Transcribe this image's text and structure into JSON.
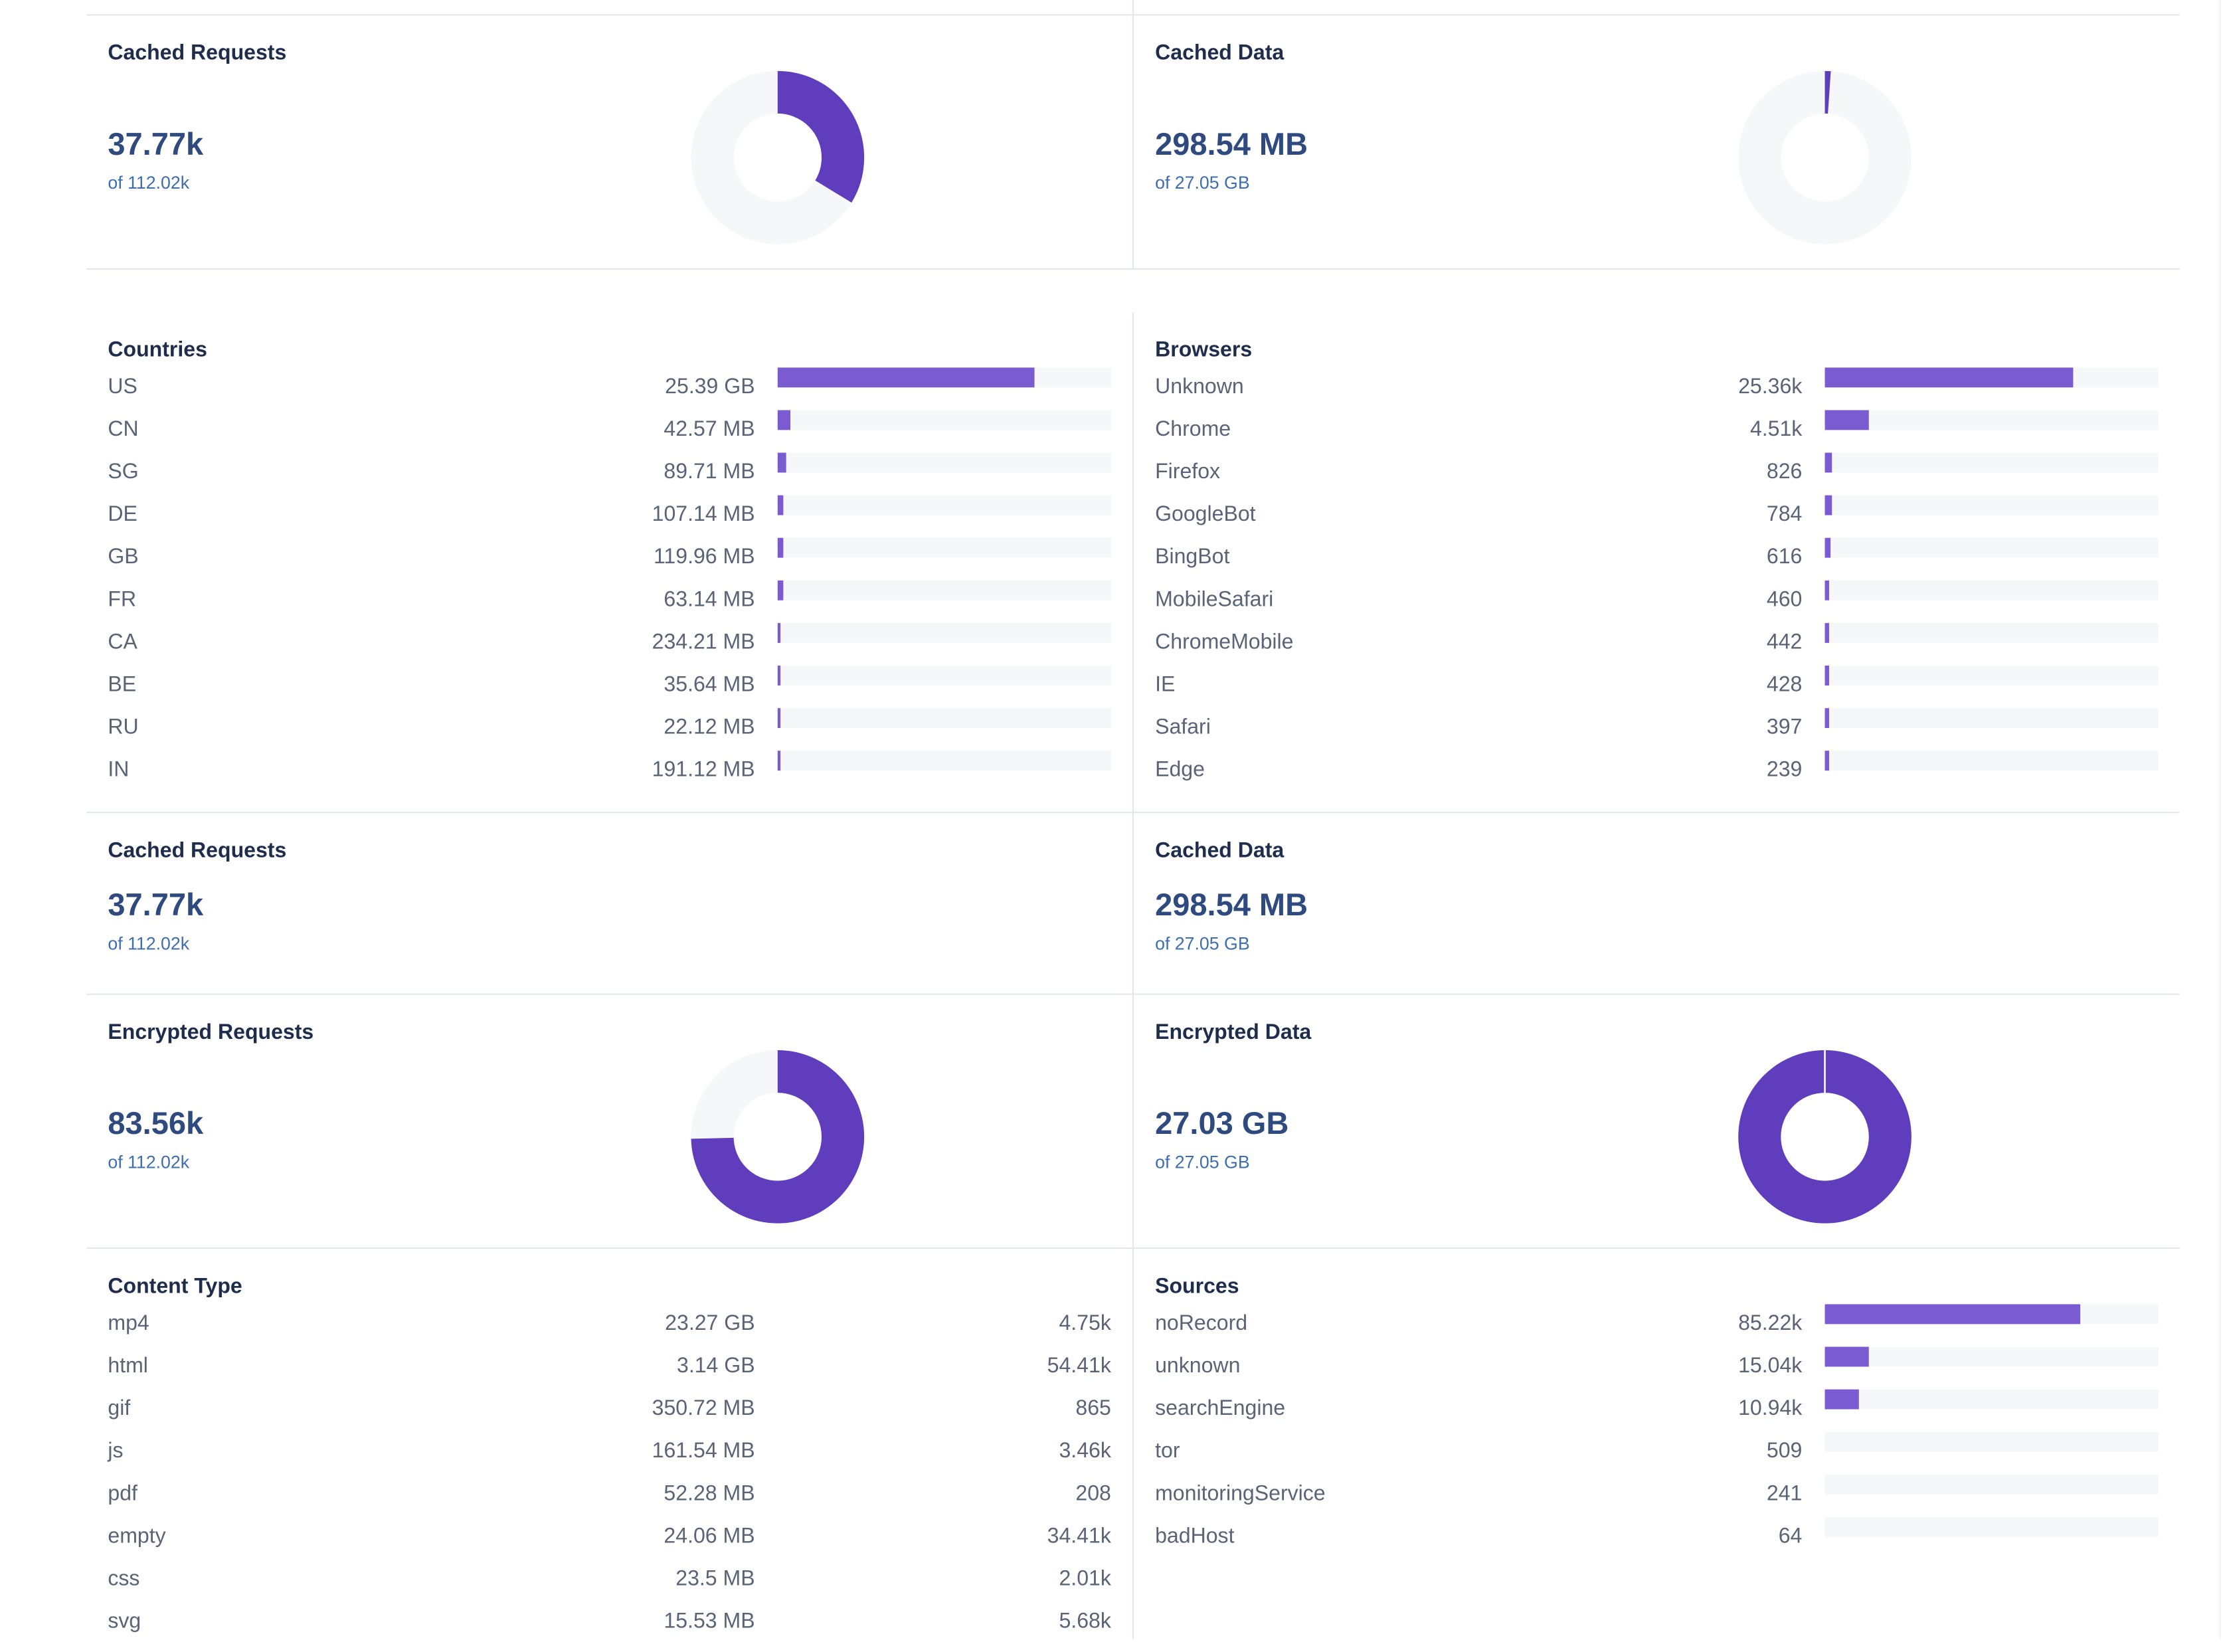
{
  "colors": {
    "accent": "#5f3dbc",
    "bar": "#7b5bd1",
    "track": "#f6f7f9",
    "divider": "#e3e6ec",
    "number": "#2e4a7e",
    "sub": "#3e6db0"
  },
  "cached_requests_top": {
    "title": "Cached Requests",
    "value": "37.77k",
    "sub": "of 112.02k",
    "fraction": 0.337
  },
  "cached_data_top": {
    "title": "Cached Data",
    "value": "298.54 MB",
    "sub": "of 27.05 GB",
    "fraction": 0.011
  },
  "countries": {
    "title": "Countries",
    "items": [
      {
        "label": "US",
        "value": "25.39 GB",
        "fraction": 0.77
      },
      {
        "label": "CN",
        "value": "42.57 MB",
        "fraction": 0.038
      },
      {
        "label": "SG",
        "value": "89.71 MB",
        "fraction": 0.026
      },
      {
        "label": "DE",
        "value": "107.14 MB",
        "fraction": 0.018
      },
      {
        "label": "GB",
        "value": "119.96 MB",
        "fraction": 0.018
      },
      {
        "label": "FR",
        "value": "63.14 MB",
        "fraction": 0.018
      },
      {
        "label": "CA",
        "value": "234.21 MB",
        "fraction": 0.009
      },
      {
        "label": "BE",
        "value": "35.64 MB",
        "fraction": 0.009
      },
      {
        "label": "RU",
        "value": "22.12 MB",
        "fraction": 0.009
      },
      {
        "label": "IN",
        "value": "191.12 MB",
        "fraction": 0.009
      }
    ]
  },
  "browsers": {
    "title": "Browsers",
    "items": [
      {
        "label": "Unknown",
        "value": "25.36k",
        "fraction": 0.745
      },
      {
        "label": "Chrome",
        "value": "4.51k",
        "fraction": 0.132
      },
      {
        "label": "Firefox",
        "value": "826",
        "fraction": 0.02
      },
      {
        "label": "GoogleBot",
        "value": "784",
        "fraction": 0.02
      },
      {
        "label": "BingBot",
        "value": "616",
        "fraction": 0.018
      },
      {
        "label": "MobileSafari",
        "value": "460",
        "fraction": 0.012
      },
      {
        "label": "ChromeMobile",
        "value": "442",
        "fraction": 0.012
      },
      {
        "label": "IE",
        "value": "428",
        "fraction": 0.012
      },
      {
        "label": "Safari",
        "value": "397",
        "fraction": 0.012
      },
      {
        "label": "Edge",
        "value": "239",
        "fraction": 0.012
      }
    ]
  },
  "cached_requests_mid": {
    "title": "Cached Requests",
    "value": "37.77k",
    "sub": "of 112.02k"
  },
  "cached_data_mid": {
    "title": "Cached Data",
    "value": "298.54 MB",
    "sub": "of 27.05 GB"
  },
  "encrypted_requests": {
    "title": "Encrypted Requests",
    "value": "83.56k",
    "sub": "of 112.02k",
    "fraction": 0.746
  },
  "encrypted_data": {
    "title": "Encrypted Data",
    "value": "27.03 GB",
    "sub": "of 27.05 GB",
    "fraction": 0.999
  },
  "content_type": {
    "title": "Content Type",
    "items": [
      {
        "label": "mp4",
        "size": "23.27 GB",
        "count": "4.75k"
      },
      {
        "label": "html",
        "size": "3.14 GB",
        "count": "54.41k"
      },
      {
        "label": "gif",
        "size": "350.72 MB",
        "count": "865"
      },
      {
        "label": "js",
        "size": "161.54 MB",
        "count": "3.46k"
      },
      {
        "label": "pdf",
        "size": "52.28 MB",
        "count": "208"
      },
      {
        "label": "empty",
        "size": "24.06 MB",
        "count": "34.41k"
      },
      {
        "label": "css",
        "size": "23.5 MB",
        "count": "2.01k"
      },
      {
        "label": "svg",
        "size": "15.53 MB",
        "count": "5.68k"
      }
    ]
  },
  "sources": {
    "title": "Sources",
    "items": [
      {
        "label": "noRecord",
        "value": "85.22k",
        "fraction": 0.765
      },
      {
        "label": "unknown",
        "value": "15.04k",
        "fraction": 0.132
      },
      {
        "label": "searchEngine",
        "value": "10.94k",
        "fraction": 0.1
      },
      {
        "label": "tor",
        "value": "509",
        "fraction": 0.0
      },
      {
        "label": "monitoringService",
        "value": "241",
        "fraction": 0.0
      },
      {
        "label": "badHost",
        "value": "64",
        "fraction": 0.0
      }
    ]
  }
}
